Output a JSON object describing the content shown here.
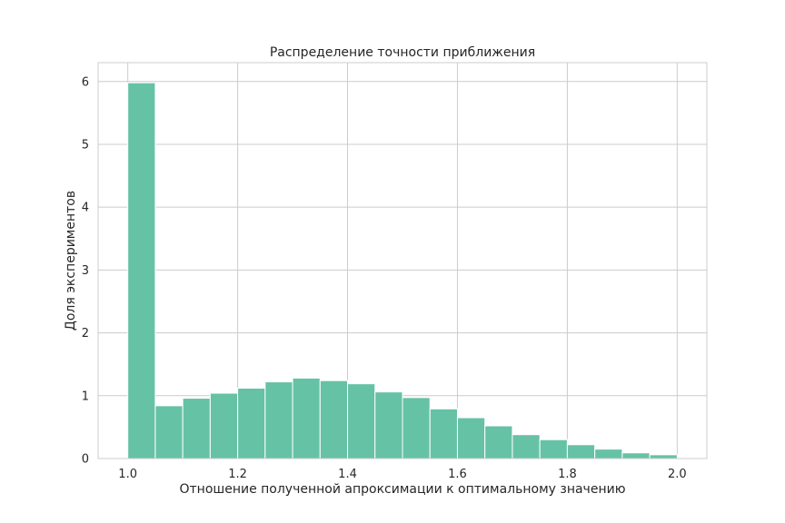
{
  "chart_data": {
    "type": "bar",
    "title": "Распределение точности приближения",
    "xlabel": "Отношение полученной апроксимации к оптимальному значению",
    "ylabel": "Доля экспериментов",
    "xlim": [
      0.946,
      2.054
    ],
    "ylim": [
      0,
      6.3
    ],
    "xticks": [
      "1.0",
      "1.2",
      "1.4",
      "1.6",
      "1.8",
      "2.0"
    ],
    "yticks": [
      "0",
      "1",
      "2",
      "3",
      "4",
      "5",
      "6"
    ],
    "grid": true,
    "bin_edges": [
      1.0,
      1.05,
      1.1,
      1.15,
      1.2,
      1.25,
      1.3,
      1.35,
      1.4,
      1.45,
      1.5,
      1.55,
      1.6,
      1.65,
      1.7,
      1.75,
      1.8,
      1.85,
      1.9,
      1.95,
      2.0
    ],
    "values": [
      5.98,
      0.84,
      0.96,
      1.04,
      1.12,
      1.22,
      1.28,
      1.24,
      1.19,
      1.06,
      0.97,
      0.79,
      0.65,
      0.52,
      0.38,
      0.3,
      0.22,
      0.15,
      0.09,
      0.06
    ],
    "colors": {
      "bar": "#66c2a5",
      "bar_edge": "#ffffff",
      "grid": "#cccccc",
      "frame": "#cccccc"
    }
  }
}
